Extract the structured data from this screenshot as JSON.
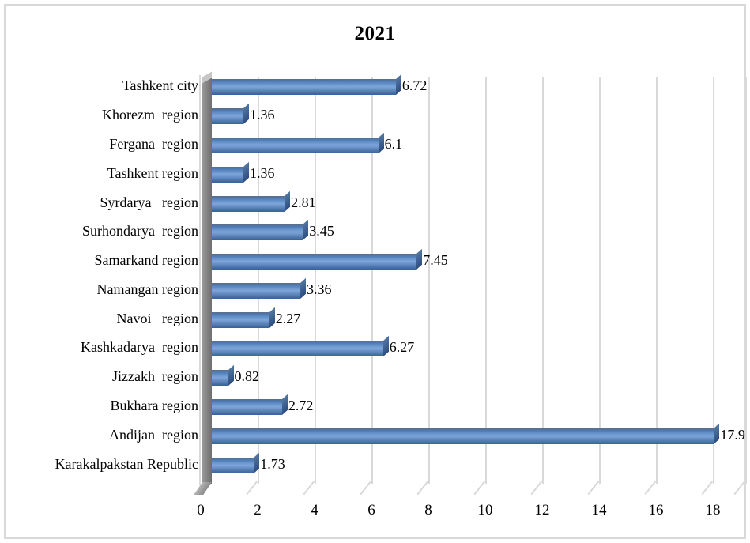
{
  "chart_data": {
    "type": "bar",
    "orientation": "horizontal",
    "title": "2021",
    "categories": [
      "Tashkent city",
      "Khorezm  region",
      "Fergana  region",
      "Tashkent region",
      "Syrdarya   region",
      "Surhondarya  region",
      "Samarkand region",
      "Namangan region",
      "Navoi   region",
      "Kashkadarya  region",
      "Jizzakh  region",
      "Bukhara region",
      "Andijan  region",
      "Karakalpakstan Republic"
    ],
    "values": [
      6.72,
      1.36,
      6.1,
      1.36,
      2.81,
      3.45,
      7.45,
      3.36,
      2.27,
      6.27,
      0.82,
      2.72,
      17.9,
      1.73
    ],
    "value_labels": [
      "6.72",
      "1.36",
      "6.1",
      "1.36",
      "2.81",
      "3.45",
      "7.45",
      "3.36",
      "2.27",
      "6.27",
      "0.82",
      "2.72",
      "17.9",
      "1.73"
    ],
    "x_ticks": [
      0,
      2,
      4,
      6,
      8,
      10,
      12,
      14,
      16,
      18
    ],
    "xlim": [
      0,
      19.1
    ],
    "grid": true,
    "legend": false,
    "xlabel": "",
    "ylabel": "",
    "style": {
      "bar_color": "#4f81bd",
      "bar_cap_color": "#2d4d80",
      "gridline_color": "#d9d9d9",
      "wall_color": "#6e6e6e",
      "frame_border_color": "#d9d9d9",
      "text_color": "#000000",
      "background": "#ffffff"
    }
  }
}
